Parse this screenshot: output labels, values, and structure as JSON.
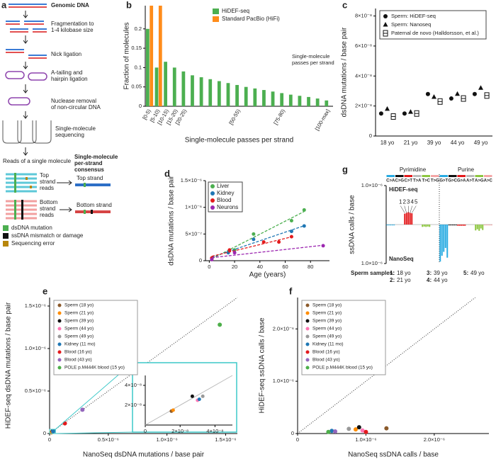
{
  "diagram": {
    "panel": "a",
    "steps": [
      "Genomic DNA",
      [
        "Fragmentation to",
        "1-4 kilobase size"
      ],
      "Nick ligation",
      [
        "A-tailing and",
        "hairpin ligation"
      ],
      [
        "Nuclease removal",
        "of non-circular DNA"
      ],
      [
        "Single-molecule",
        "sequencing"
      ]
    ],
    "reads_title": "Reads of a single molecule",
    "consensus_title": [
      "Single-molecule",
      "per-strand",
      "consensus"
    ],
    "top_reads": [
      "Top",
      "strand",
      "reads"
    ],
    "top": "Top strand",
    "bottom_reads": [
      "Bottom",
      "strand",
      "reads"
    ],
    "bottom": "Bottom strand",
    "legend": [
      {
        "label": "dsDNA mutation",
        "color": "#4caf50"
      },
      {
        "label": "ssDNA mismatch or damage",
        "color": "#111111"
      },
      {
        "label": "Sequencing error",
        "color": "#b8860b"
      }
    ]
  },
  "chart_data": [
    {
      "type": "bar",
      "panel": "b",
      "ylabel": "Fraction of molecules",
      "xlabel": "Single-molecule passes per strand",
      "annotation": [
        "Single-molecule",
        "passes per strand"
      ],
      "categories": [
        "[0-5)",
        "[5-10)",
        "[10-15)",
        "[15-20)",
        "[20-25)",
        null,
        null,
        null,
        null,
        null,
        "[50-55)",
        null,
        null,
        null,
        null,
        "[75-80)",
        null,
        null,
        null,
        null,
        "[100-max]"
      ],
      "series": [
        {
          "name": "HiDEF-seq",
          "color": "#4caf50",
          "values": [
            0.2,
            0.1,
            0.115,
            0.1,
            0.09,
            0.08,
            0.075,
            0.07,
            0.065,
            0.06,
            0.055,
            0.05,
            0.046,
            0.042,
            0.038,
            0.034,
            0.03,
            0.027,
            0.024,
            0.02,
            0.015
          ]
        },
        {
          "name": "Standard PacBio (HiFi)",
          "color": "#ff8c1a",
          "values": [
            0.26,
            0.26,
            0,
            0,
            0,
            0,
            0,
            0,
            0,
            0,
            0,
            0,
            0,
            0,
            0,
            0,
            0,
            0,
            0,
            0,
            0
          ]
        }
      ],
      "ylim": [
        0,
        0.26
      ],
      "yticks": [
        0,
        0.05,
        0.1,
        0.15,
        0.2
      ]
    },
    {
      "type": "dot",
      "panel": "c",
      "ylabel": "dsDNA mutations / base pair",
      "categories": [
        "18 yo",
        "21 yo",
        "39 yo",
        "44 yo",
        "49 yo"
      ],
      "series": [
        {
          "name": "Sperm: HiDEF-seq",
          "marker": "circle",
          "color": "#111111",
          "values": [
            1.5e-08,
            1.5e-08,
            2.8e-08,
            2.5e-08,
            2.8e-08
          ]
        },
        {
          "name": "Sperm: Nanoseq",
          "marker": "triangle",
          "color": "#111111",
          "values": [
            1.8e-08,
            1.6e-08,
            2.6e-08,
            2.8e-08,
            3.2e-08
          ]
        },
        {
          "name": "Paternal de novo (Halldorsson, et al.)",
          "marker": "box",
          "color": "#111111",
          "values": [
            1.3e-08,
            1.5e-08,
            2.3e-08,
            2.5e-08,
            2.7e-08
          ]
        }
      ],
      "ylim": [
        0,
        8.5e-08
      ],
      "yticks": [
        0,
        {
          "value": 2e-08,
          "label": "2×10⁻⁸"
        },
        {
          "value": 4e-08,
          "label": "4×10⁻⁸"
        },
        {
          "value": 6e-08,
          "label": "6×10⁻⁸"
        },
        {
          "value": 8e-08,
          "label": "8×10⁻⁸"
        }
      ]
    },
    {
      "type": "trend",
      "panel": "d",
      "ylabel": "dsDNA mutations / base pair",
      "xlabel": "Age (years)",
      "series": [
        {
          "name": "Liver",
          "color": "#4caf50",
          "x": [
            2,
            20,
            35,
            65,
            75
          ],
          "values": [
            5e-08,
            2e-07,
            5e-07,
            7.5e-07,
            9.5e-07
          ]
        },
        {
          "name": "Kidney",
          "color": "#1f77b4",
          "x": [
            2,
            15,
            35,
            65,
            75
          ],
          "values": [
            5e-08,
            1.5e-07,
            4e-07,
            5.5e-07,
            6.5e-07
          ]
        },
        {
          "name": "Blood",
          "color": "#e31a1c",
          "x": [
            2,
            16,
            43,
            55,
            65
          ],
          "values": [
            5e-08,
            2e-07,
            3.5e-07,
            3.5e-07,
            4.5e-07
          ]
        },
        {
          "name": "Neurons",
          "color": "#9c27b0",
          "x": [
            2,
            20,
            90
          ],
          "values": [
            2e-08,
            1.5e-07,
            2.8e-07
          ]
        }
      ],
      "xlim": [
        -3,
        95
      ],
      "xticks": [
        0,
        20,
        40,
        60,
        80
      ],
      "ylim": [
        0,
        1.5e-06
      ],
      "yticks": [
        0,
        {
          "value": 5e-07,
          "label": "5×10⁻⁷"
        },
        {
          "value": 1e-06,
          "label": "1×10⁻⁶"
        },
        {
          "value": 1.5e-06,
          "label": "1.5×10⁻⁶"
        }
      ]
    },
    {
      "type": "signed-bar",
      "panel": "g",
      "ylabel": "ssDNA calls / base",
      "groups": [
        "Pyrimidine",
        "Purine"
      ],
      "categories": [
        "C>A",
        "C>G",
        "C>T",
        "T>A",
        "T>C",
        "T>G",
        "G>T",
        "G>C",
        "G>A",
        "A>T",
        "A>G",
        "A>C"
      ],
      "colors": [
        "#29abe2",
        "#111111",
        "#e31a1c",
        "#bbbbbb",
        "#8cc63f",
        "#f4a6a6",
        "#29abe2",
        "#111111",
        "#e31a1c",
        "#bbbbbb",
        "#8cc63f",
        "#f4a6a6"
      ],
      "series": [
        {
          "name": "HiDEF-seq",
          "samples": [
            [
              -2e-08,
              0,
              2.8e-07,
              0,
              -6e-08,
              0,
              -2e-08,
              0,
              -2e-08,
              0,
              0,
              0
            ],
            [
              -2e-08,
              0,
              3e-07,
              0,
              -5e-08,
              0,
              -2e-08,
              0,
              -2e-08,
              0,
              0,
              0
            ],
            [
              -2e-08,
              0,
              3.2e-07,
              0,
              -6e-08,
              0,
              -2e-08,
              0,
              -2e-08,
              0,
              0,
              0
            ],
            [
              -2e-08,
              0,
              3e-07,
              0,
              -5e-08,
              0,
              -2e-08,
              0,
              -2e-08,
              0,
              0,
              0
            ],
            [
              -2e-08,
              0,
              2.9e-07,
              0,
              -6e-08,
              0,
              -2e-08,
              0,
              -2e-08,
              0,
              0,
              0
            ]
          ]
        },
        {
          "name": "NanoSeq",
          "samples": [
            [
              0,
              0,
              0,
              0,
              0,
              0,
              -9.5e-07,
              -2e-08,
              -3e-08,
              -1e-08,
              -1.5e-07,
              -2e-08
            ],
            [
              0,
              0,
              0,
              0,
              0,
              0,
              -8e-07,
              -2e-08,
              -3e-08,
              -1e-08,
              -1.2e-07,
              -2e-08
            ],
            [
              0,
              0,
              0,
              0,
              0,
              0,
              -7e-07,
              -2e-08,
              -3e-08,
              -1e-08,
              -1.6e-07,
              -2e-08
            ],
            [
              0,
              0,
              0,
              0,
              0,
              0,
              -6e-07,
              -2e-08,
              -3e-08,
              -1e-08,
              -1e-07,
              -2e-08
            ],
            [
              0,
              0,
              0,
              0,
              0,
              0,
              -8.5e-07,
              -2e-08,
              -3e-08,
              -1e-08,
              -1.4e-07,
              -2e-08
            ]
          ]
        }
      ],
      "sample_labels": [
        "1",
        "2",
        "3",
        "4",
        "5"
      ],
      "sample_legend_title": "Sperm samples:",
      "sample_legend": [
        {
          "key": "1:",
          "label": "18 yo"
        },
        {
          "key": "2:",
          "label": "21 yo"
        },
        {
          "key": "3:",
          "label": "39 yo"
        },
        {
          "key": "4:",
          "label": "44 yo"
        },
        {
          "key": "5:",
          "label": "49 yo"
        }
      ],
      "ylim": [
        -1e-06,
        1e-06
      ],
      "yticks": [
        {
          "value": 1e-06,
          "label": "1.0×10⁻⁶"
        },
        {
          "value": -1e-06,
          "label": "1.0×10⁻⁶"
        }
      ]
    },
    {
      "type": "scatter",
      "panel": "e",
      "xlabel": "NanoSeq dsDNA mutations / base pair",
      "ylabel": "HiDEF-seq dsDNA mutations / base pair",
      "series": [
        {
          "name": "Sperm (18 yo)",
          "color": "#8b5a2b",
          "x": [
            1.5e-08
          ],
          "values": [
            1.4e-08
          ]
        },
        {
          "name": "Sperm (21 yo)",
          "color": "#ff8c00",
          "x": [
            1.6e-08
          ],
          "values": [
            1.5e-08
          ]
        },
        {
          "name": "Sperm (39 yo)",
          "color": "#111111",
          "x": [
            2.7e-08
          ],
          "values": [
            2.9e-08
          ]
        },
        {
          "name": "Sperm (44 yo)",
          "color": "#ff77b4",
          "x": [
            3e-08
          ],
          "values": [
            2.5e-08
          ]
        },
        {
          "name": "Sperm (49 yo)",
          "color": "#999999",
          "x": [
            3.3e-08
          ],
          "values": [
            2.9e-08
          ]
        },
        {
          "name": "Kidney (11 mo)",
          "color": "#1f77b4",
          "x": [
            3.1e-08
          ],
          "values": [
            2.6e-08
          ]
        },
        {
          "name": "Blood (16 yo)",
          "color": "#e31a1c",
          "x": [
            1.3e-07
          ],
          "values": [
            1.2e-07
          ]
        },
        {
          "name": "Blood (43 yo)",
          "color": "#9467bd",
          "x": [
            2.8e-07
          ],
          "values": [
            2.8e-07
          ]
        },
        {
          "name": "POLE p.M444K blood (15 yo)",
          "color": "#4daf4a",
          "x": [
            1.45e-06
          ],
          "values": [
            1.28e-06
          ]
        }
      ],
      "xlim": [
        0,
        1.6e-06
      ],
      "ylim": [
        0,
        1.6e-06
      ],
      "xticks": [
        0,
        {
          "value": 5e-07,
          "label": "0.5×10⁻⁶"
        },
        {
          "value": 1e-06,
          "label": "1.0×10⁻⁶"
        },
        {
          "value": 1.5e-06,
          "label": "1.5×10⁻⁶"
        }
      ],
      "yticks": [
        0,
        {
          "value": 5e-07,
          "label": "0.5×10⁻⁶"
        },
        {
          "value": 1e-06,
          "label": "1.0×10⁻⁶"
        },
        {
          "value": 1.5e-06,
          "label": "1.5×10⁻⁶"
        }
      ],
      "inset": {
        "xlim": [
          0,
          5e-08
        ],
        "ylim": [
          0,
          5e-08
        ],
        "xticks": [
          0,
          {
            "value": 2e-08,
            "label": "2×10⁻⁸"
          },
          {
            "value": 4e-08,
            "label": "4×10⁻⁸"
          }
        ],
        "yticks": [
          {
            "value": 2e-08,
            "label": "2×10⁻⁸"
          },
          {
            "value": 4e-08,
            "label": "4×10⁻⁸"
          }
        ]
      }
    },
    {
      "type": "scatter",
      "panel": "f",
      "xlabel": "NanoSeq ssDNA calls / base",
      "ylabel": "HiDEF-seq ssDNA calls / base",
      "series": [
        {
          "name": "Sperm (18 yo)",
          "color": "#8b5a2b",
          "x": [
            1.3e-06
          ],
          "values": [
            1e-07
          ]
        },
        {
          "name": "Sperm (21 yo)",
          "color": "#ff8c00",
          "x": [
            8.5e-07
          ],
          "values": [
            8e-08
          ]
        },
        {
          "name": "Sperm (39 yo)",
          "color": "#111111",
          "x": [
            9e-07
          ],
          "values": [
            1.2e-07
          ]
        },
        {
          "name": "Sperm (44 yo)",
          "color": "#ff77b4",
          "x": [
            9.5e-07
          ],
          "values": [
            6e-08
          ]
        },
        {
          "name": "Sperm (49 yo)",
          "color": "#999999",
          "x": [
            7.5e-07
          ],
          "values": [
            9e-08
          ]
        },
        {
          "name": "Kidney (11 mo)",
          "color": "#1f77b4",
          "x": [
            5e-07
          ],
          "values": [
            5e-08
          ]
        },
        {
          "name": "Blood (16 yo)",
          "color": "#e31a1c",
          "x": [
            1e-06
          ],
          "values": [
            3e-08
          ]
        },
        {
          "name": "Blood (43 yo)",
          "color": "#9467bd",
          "x": [
            5.5e-07
          ],
          "values": [
            4e-08
          ]
        },
        {
          "name": "POLE p.M444K blood (15 yo)",
          "color": "#4daf4a",
          "x": [
            4.5e-07
          ],
          "values": [
            3e-08
          ]
        }
      ],
      "xlim": [
        0,
        2.8e-06
      ],
      "ylim": [
        0,
        2.6e-06
      ],
      "xticks": [
        0,
        {
          "value": 1e-06,
          "label": "1.0×10⁻⁶"
        },
        {
          "value": 2e-06,
          "label": "2.0×10⁻⁶"
        }
      ],
      "yticks": [
        0,
        {
          "value": 1e-06,
          "label": "1.0×10⁻⁶"
        },
        {
          "value": 2e-06,
          "label": "2.0×10⁻⁶"
        }
      ]
    }
  ]
}
